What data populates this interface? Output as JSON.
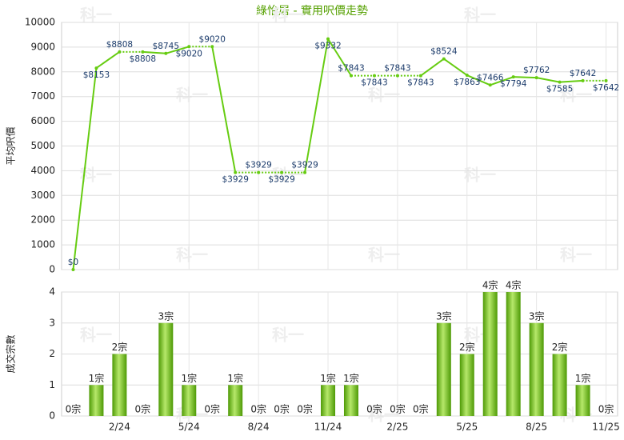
{
  "title": "綠怡居 - 實用呎價走勢",
  "watermark": "科一",
  "chart_data": [
    {
      "type": "line",
      "y_label": "平均呎價",
      "color": "#66cc11",
      "grid": true,
      "ylim": [
        0,
        10000
      ],
      "yticks": [
        0,
        1000,
        2000,
        3000,
        4000,
        5000,
        6000,
        7000,
        8000,
        9000,
        10000
      ],
      "values": [
        0,
        8153,
        8808,
        8808,
        8745,
        9020,
        9020,
        3929,
        3929,
        3929,
        3929,
        9332,
        7843,
        7843,
        7843,
        7843,
        8524,
        7863,
        7466,
        7794,
        7762,
        7585,
        7642,
        7642
      ],
      "value_labels": [
        "$0",
        "$8153",
        "$8808",
        "$8808",
        "$8745",
        "$9020",
        "$9020",
        "$3929",
        "$3929",
        "$3929",
        "$3929",
        "$9332",
        "$7843",
        "$7843",
        "$7843",
        "$7843",
        "$8524",
        "$7863",
        "$7466",
        "$7794",
        "$7762",
        "$7585",
        "$7642",
        "$7642"
      ]
    },
    {
      "type": "bar",
      "y_label": "成交宗數",
      "color": "#66bb11",
      "grid": true,
      "ylim": [
        0,
        4
      ],
      "yticks": [
        0,
        1,
        2,
        3,
        4
      ],
      "categories": [
        null,
        null,
        "2/24",
        null,
        null,
        "5/24",
        null,
        null,
        "8/24",
        null,
        null,
        "11/24",
        null,
        null,
        "2/25",
        null,
        null,
        "5/25",
        null,
        null,
        "8/25",
        null,
        null,
        "11/25"
      ],
      "values": [
        0,
        1,
        2,
        0,
        3,
        1,
        0,
        1,
        0,
        0,
        0,
        1,
        1,
        0,
        0,
        0,
        3,
        2,
        4,
        4,
        3,
        2,
        1,
        0
      ],
      "value_labels": [
        "0宗",
        "1宗",
        "2宗",
        "0宗",
        "3宗",
        "1宗",
        "0宗",
        "1宗",
        "0宗",
        "0宗",
        "0宗",
        "1宗",
        "1宗",
        "0宗",
        "0宗",
        "0宗",
        "3宗",
        "2宗",
        "4宗",
        "4宗",
        "3宗",
        "2宗",
        "1宗",
        "0宗"
      ]
    }
  ]
}
